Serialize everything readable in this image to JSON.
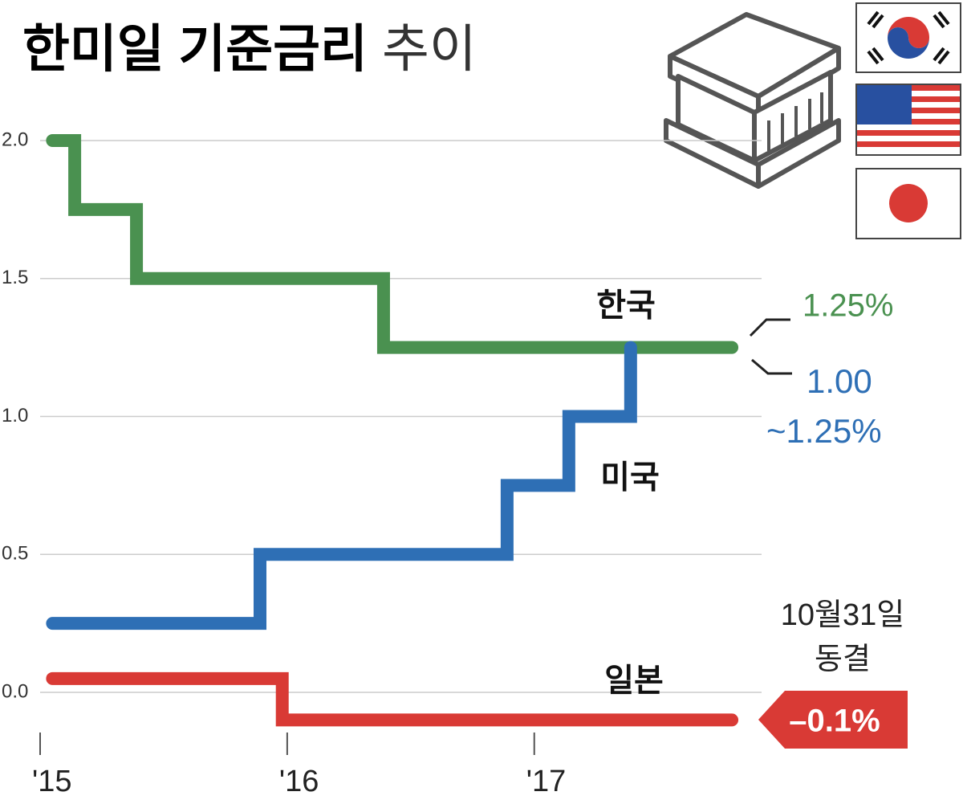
{
  "chart_data": {
    "type": "step",
    "title": "한미일 기준금리",
    "subtitle": "추이",
    "xlim": [
      2015,
      2017.92
    ],
    "xticks": [
      {
        "value": 2015,
        "label": "'15"
      },
      {
        "value": 2016,
        "label": "'16"
      },
      {
        "value": 2017,
        "label": "'17"
      }
    ],
    "ylim": [
      -0.2,
      2.1
    ],
    "yticks": [
      {
        "value": 2,
        "label": "2.0"
      },
      {
        "value": 1.5,
        "label": "1.5"
      },
      {
        "value": 1,
        "label": "1.0"
      },
      {
        "value": 0.5,
        "label": "0.5"
      },
      {
        "value": 0,
        "label": "0.0"
      }
    ],
    "grid": true,
    "series": [
      {
        "name": "한국",
        "color": "#4a9150",
        "x": [
          2015.05,
          2015.14,
          2015.39,
          2016.39,
          2017.8
        ],
        "values": [
          2.0,
          1.75,
          1.5,
          1.25,
          1.25
        ]
      },
      {
        "name": "미국",
        "color": "#2e6fb5",
        "x": [
          2015.05,
          2015.89,
          2016.89,
          2017.14,
          2017.39
        ],
        "values": [
          0.25,
          0.5,
          0.75,
          1.0,
          1.25
        ]
      },
      {
        "name": "일본",
        "color": "#d93a35",
        "x": [
          2015.05,
          2015.98,
          2017.8
        ],
        "values": [
          0.05,
          -0.1,
          -0.1
        ]
      }
    ],
    "annotations": [
      "1.25%",
      "1.00",
      "~1.25%",
      "10월31일",
      "동결",
      "–0.1%"
    ]
  }
}
